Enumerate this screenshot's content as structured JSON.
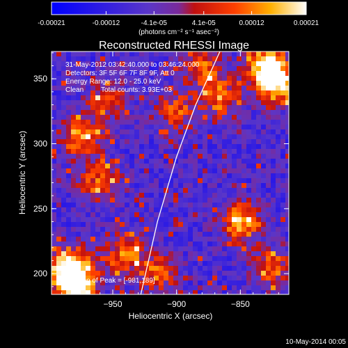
{
  "colorbar": {
    "ticks": [
      "-0.00021",
      "-0.00012",
      "-4.1e-05",
      "4.1e-05",
      "0.00012",
      "0.00021"
    ],
    "tick_values": [
      -0.00021,
      -0.00012,
      -4.1e-05,
      4.1e-05,
      0.00012,
      0.00021
    ],
    "range": [
      -0.00021,
      0.00021
    ],
    "units": "(photons cm⁻² s⁻¹ asec⁻²)"
  },
  "chart_data": {
    "type": "heatmap",
    "title": "Reconstructed RHESSI Image",
    "xlabel": "Heliocentric X (arcsec)",
    "ylabel": "Heliocentric Y (arcsec)",
    "xlim": [
      -998,
      -812
    ],
    "ylim": [
      184,
      371
    ],
    "xticks": [
      -950,
      -900,
      -850
    ],
    "yticks": [
      200,
      250,
      300,
      350
    ],
    "annotations": [
      "31-May-2012 03:42:40.000 to 03:46:24.000",
      "Detectors: 3F 5F 6F 7F 8F 9F, Att 0",
      "Energy Range: 12.0 - 25.0 keV",
      "Clean",
      "Total counts: 3.93E+03"
    ],
    "peak_label": "Position of Peak = [-981,189]",
    "peak_position": [
      -981,
      189
    ],
    "limb_curve": [
      [
        -928,
        184
      ],
      [
        -915,
        240
      ],
      [
        -900,
        290
      ],
      [
        -885,
        330
      ],
      [
        -866,
        371
      ]
    ],
    "hot_regions": [
      {
        "x": -985,
        "y": 205,
        "intensity": 1.0
      },
      {
        "x": -978,
        "y": 190,
        "intensity": 0.95
      },
      {
        "x": -975,
        "y": 305,
        "intensity": 0.7
      },
      {
        "x": -960,
        "y": 270,
        "intensity": 0.55
      },
      {
        "x": -940,
        "y": 215,
        "intensity": 0.6
      },
      {
        "x": -915,
        "y": 200,
        "intensity": 0.5
      },
      {
        "x": -900,
        "y": 325,
        "intensity": 0.5
      },
      {
        "x": -880,
        "y": 360,
        "intensity": 0.55
      },
      {
        "x": -865,
        "y": 335,
        "intensity": 0.6
      },
      {
        "x": -850,
        "y": 240,
        "intensity": 0.7
      },
      {
        "x": -830,
        "y": 360,
        "intensity": 0.9
      },
      {
        "x": -820,
        "y": 345,
        "intensity": 0.85
      },
      {
        "x": -825,
        "y": 205,
        "intensity": 0.55
      },
      {
        "x": -955,
        "y": 335,
        "intensity": 0.45
      }
    ]
  },
  "footer": {
    "timestamp": "10-May-2014 00:05"
  }
}
